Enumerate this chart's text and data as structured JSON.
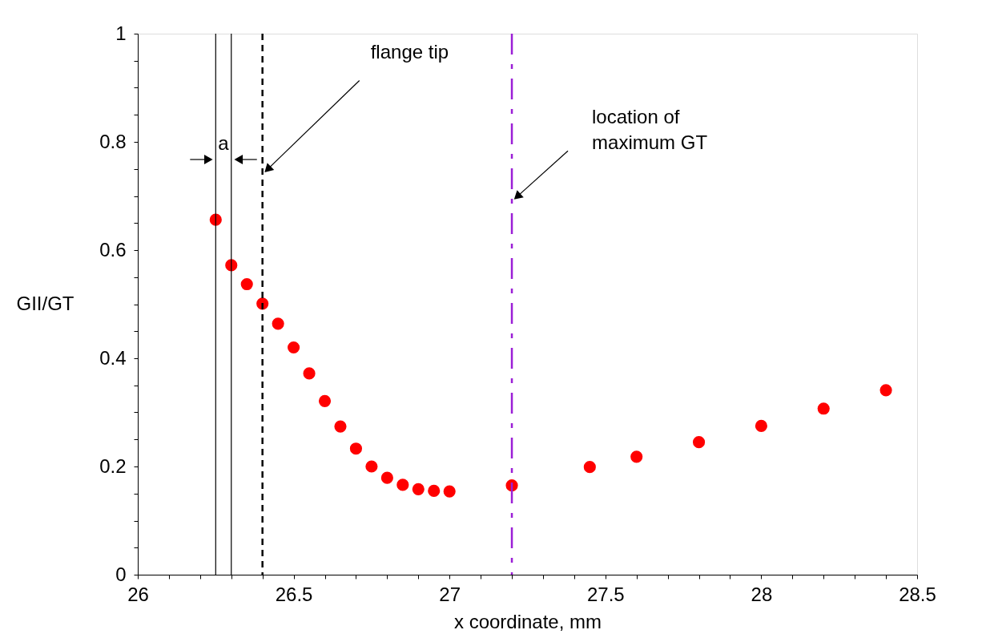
{
  "chart_data": {
    "type": "scatter",
    "xlabel": "x coordinate, mm",
    "ylabel": "GII/GT",
    "x": [
      26.25,
      26.3,
      26.35,
      26.4,
      26.45,
      26.5,
      26.55,
      26.6,
      26.65,
      26.7,
      26.75,
      26.8,
      26.85,
      26.9,
      26.95,
      27.0,
      27.2,
      27.45,
      27.6,
      27.8,
      28.0,
      28.2,
      28.4
    ],
    "series": [
      {
        "color": "#ff0000",
        "values": [
          0.656,
          0.572,
          0.537,
          0.501,
          0.464,
          0.42,
          0.372,
          0.321,
          0.274,
          0.233,
          0.2,
          0.179,
          0.166,
          0.158,
          0.155,
          0.154,
          0.165,
          0.199,
          0.218,
          0.245,
          0.275,
          0.307,
          0.341
        ]
      }
    ],
    "marker": "circle",
    "xlim": [
      26,
      28.5
    ],
    "xticks": [
      26,
      {
        "value": 26.1,
        "label": null
      },
      {
        "value": 26.2,
        "label": null
      },
      {
        "value": 26.3,
        "label": null
      },
      {
        "value": 26.4,
        "label": null
      },
      26.5,
      {
        "value": 26.6,
        "label": null
      },
      {
        "value": 26.7,
        "label": null
      },
      {
        "value": 26.8,
        "label": null
      },
      {
        "value": 26.9,
        "label": null
      },
      27,
      {
        "value": 27.1,
        "label": null
      },
      {
        "value": 27.2,
        "label": null
      },
      {
        "value": 27.3,
        "label": null
      },
      {
        "value": 27.4,
        "label": null
      },
      27.5,
      {
        "value": 27.6,
        "label": null
      },
      {
        "value": 27.7,
        "label": null
      },
      {
        "value": 27.8,
        "label": null
      },
      {
        "value": 27.9,
        "label": null
      },
      28,
      {
        "value": 28.1,
        "label": null
      },
      {
        "value": 28.2,
        "label": null
      },
      {
        "value": 28.3,
        "label": null
      },
      {
        "value": 28.4,
        "label": null
      },
      28.5
    ],
    "ylim": [
      0,
      1
    ],
    "yticks": [
      0,
      {
        "value": 0.05,
        "label": null
      },
      {
        "value": 0.1,
        "label": null
      },
      {
        "value": 0.15,
        "label": null
      },
      0.2,
      {
        "value": 0.25,
        "label": null
      },
      {
        "value": 0.3,
        "label": null
      },
      {
        "value": 0.35,
        "label": null
      },
      0.4,
      {
        "value": 0.45,
        "label": null
      },
      {
        "value": 0.5,
        "label": null
      },
      {
        "value": 0.55,
        "label": null
      },
      0.6,
      {
        "value": 0.65,
        "label": null
      },
      {
        "value": 0.7,
        "label": null
      },
      {
        "value": 0.75,
        "label": null
      },
      0.8,
      {
        "value": 0.85,
        "label": null
      },
      {
        "value": 0.9,
        "label": null
      },
      {
        "value": 0.95,
        "label": null
      },
      1
    ],
    "grid": false,
    "ref_lines": [
      {
        "axis": "x",
        "value": 26.25,
        "color": "#000000",
        "line_style": "solid"
      },
      {
        "axis": "x",
        "value": 26.3,
        "color": "#000000",
        "line_style": "solid"
      },
      {
        "axis": "x",
        "value": 26.4,
        "color": "#000000",
        "line_style": "dashed"
      },
      {
        "axis": "x",
        "value": 27.2,
        "color": "#9b1fd6",
        "line_style": "dashdot"
      }
    ],
    "annotations": [
      "a",
      {
        "text": "flange tip",
        "x": 26.4,
        "y": 0.74
      },
      {
        "text": "location of\nmaximum GT",
        "x": 27.2,
        "y": 0.69
      }
    ]
  }
}
